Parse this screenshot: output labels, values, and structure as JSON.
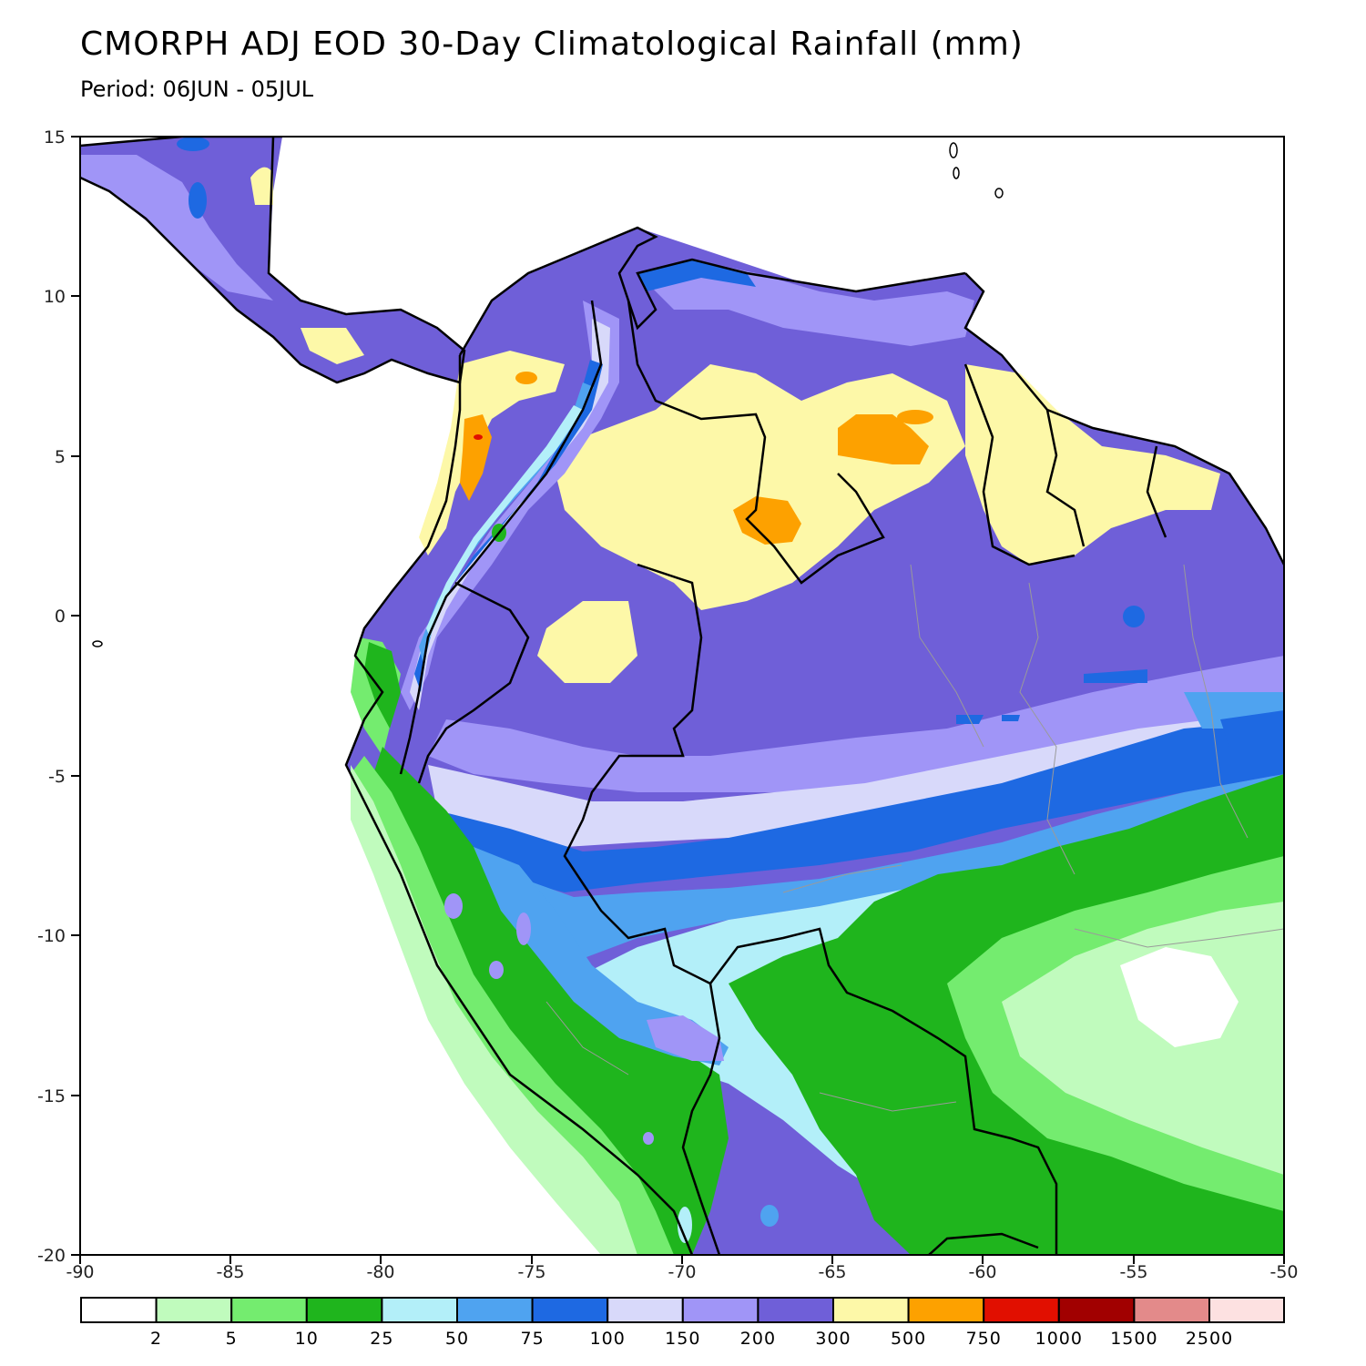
{
  "title": "CMORPH ADJ EOD 30-Day Climatological Rainfall (mm)",
  "subtitle": "Period: 06JUN - 05JUL",
  "axes": {
    "lon_ticks": [
      "-90",
      "-85",
      "-80",
      "-75",
      "-70",
      "-65",
      "-60",
      "-55",
      "-50"
    ],
    "lat_ticks": [
      "15",
      "10",
      "5",
      "0",
      "-5",
      "-10",
      "-15",
      "-20"
    ]
  },
  "legend": {
    "colors": [
      "#ffffff",
      "#c0fbbd",
      "#74ec6f",
      "#1fb51d",
      "#b3eff9",
      "#4fa3f0",
      "#1e69e2",
      "#d8d9fa",
      "#a095f7",
      "#6f5fd8",
      "#fdf8a8",
      "#fda100",
      "#e10f00",
      "#a10000",
      "#e38a8a",
      "#fde1e1"
    ],
    "labels": [
      "2",
      "5",
      "10",
      "25",
      "50",
      "75",
      "100",
      "150",
      "200",
      "300",
      "500",
      "750",
      "1000",
      "1500",
      "2500"
    ]
  }
}
